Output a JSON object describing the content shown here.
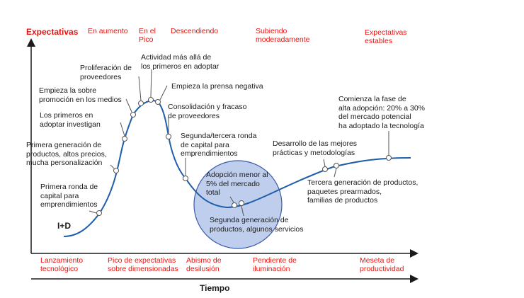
{
  "colors": {
    "curve": "#1f5ea8",
    "phase_text": "#e8140f",
    "bubble_fill": "#a9bde6",
    "bubble_stroke": "#3a5aa8",
    "axis": "#1a1a1a"
  },
  "axes": {
    "y_label": "Expectativas",
    "x_label": "Tiempo"
  },
  "top_phases": [
    "En aumento",
    "En el\nPico",
    "Descendiendo",
    "Subiendo\nmoderadamente",
    "Expectativas\nestables"
  ],
  "bottom_phases": [
    "Lanzamiento\ntecnológico",
    "Pico de expectativas\nsobre dimensionadas",
    "Abismo de\ndesilusión",
    "Pendiente de\niluminación",
    "Meseta de\nproductividad"
  ],
  "rd_label": "I+D",
  "annotations": [
    "Primera ronda de\ncapital para\nemprendimientos",
    "Primera generación de\nproductos, altos precios,\nmucha personalización",
    "Los primeros en\nadoptar investigan",
    "Empieza la sobre\npromoción en los medios",
    "Proliferación de\nproveedores",
    "Actividad más allá de\nlos primeros en adoptar",
    "Empieza la prensa negativa",
    "Consolidación y fracaso\nde proveedores",
    "Segunda/tercera ronda\nde capital para\nemprendimientos",
    "Adopción menor al\n5% del mercado\ntotal",
    "Segunda generación de\nproductos, algunos servicios",
    "Desarrollo de las mejores\nprácticas y metodologías",
    "Tercera generación de productos,\npaquetes prearmados,\nfamilias de productos",
    "Comienza la fase de\nalta adopción: 20% a 30%\ndel mercado potencial\nha adoptado la tecnología"
  ]
}
